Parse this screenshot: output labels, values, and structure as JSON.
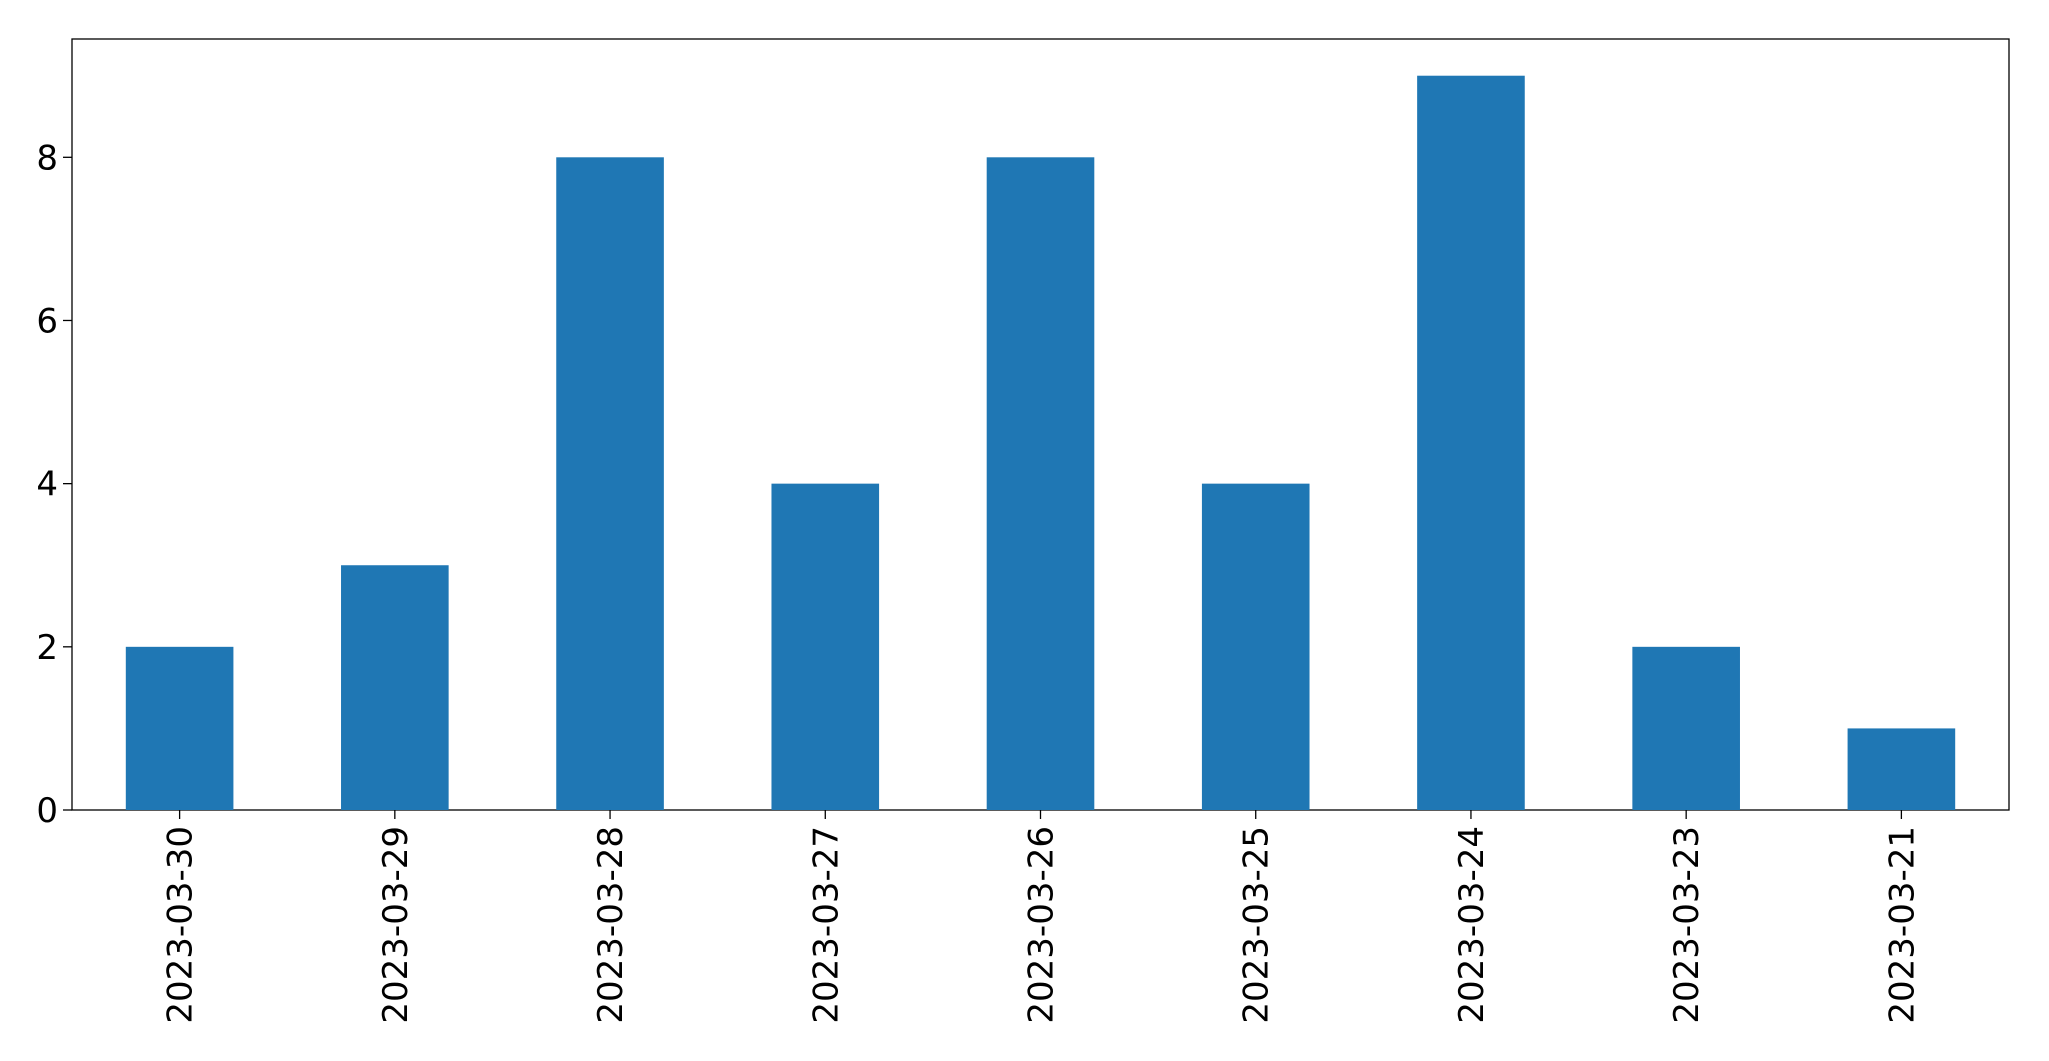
{
  "chart_data": {
    "type": "bar",
    "categories": [
      "2023-03-30",
      "2023-03-29",
      "2023-03-28",
      "2023-03-27",
      "2023-03-26",
      "2023-03-25",
      "2023-03-24",
      "2023-03-23",
      "2023-03-21"
    ],
    "values": [
      2,
      3,
      8,
      4,
      8,
      4,
      9,
      2,
      1
    ],
    "color": "#1f77b4",
    "ylim": [
      0,
      9.45
    ],
    "yticks": [
      0,
      2,
      4,
      6,
      8
    ],
    "grid": false
  }
}
